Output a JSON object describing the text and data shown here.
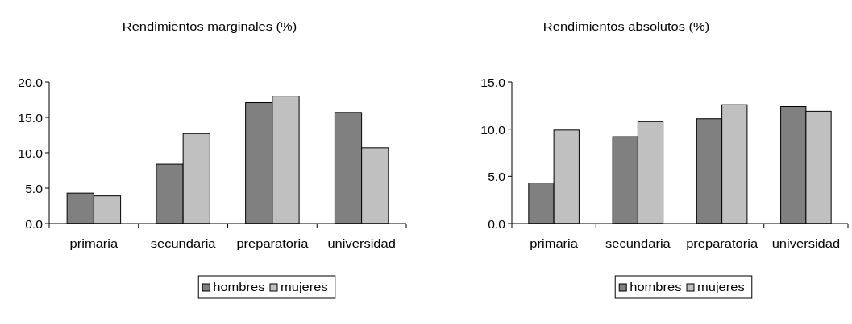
{
  "chart_data": [
    {
      "type": "bar",
      "title": "Rendimientos marginales (%)",
      "categories": [
        "primaria",
        "secundaria",
        "preparatoria",
        "universidad"
      ],
      "series": [
        {
          "name": "hombres",
          "color": "#808080",
          "values": [
            4.3,
            8.4,
            17.1,
            15.7
          ]
        },
        {
          "name": "mujeres",
          "color": "#c0c0c0",
          "values": [
            3.9,
            12.7,
            18.0,
            10.7
          ]
        }
      ],
      "ylim": [
        0,
        20
      ],
      "yticks": [
        {
          "value": 0,
          "label": "0.0"
        },
        {
          "value": 5,
          "label": "5.0"
        },
        {
          "value": 10,
          "label": "10.0"
        },
        {
          "value": 15,
          "label": "15.0"
        },
        {
          "value": 20,
          "label": "20.0"
        }
      ],
      "legend": "bottom"
    },
    {
      "type": "bar",
      "title": "Rendimientos absolutos (%)",
      "categories": [
        "primaria",
        "secundaria",
        "preparatoria",
        "universidad"
      ],
      "series": [
        {
          "name": "hombres",
          "color": "#808080",
          "values": [
            4.3,
            9.2,
            11.1,
            12.4
          ]
        },
        {
          "name": "mujeres",
          "color": "#c0c0c0",
          "values": [
            9.9,
            10.8,
            12.6,
            11.9
          ]
        }
      ],
      "ylim": [
        0,
        15
      ],
      "yticks": [
        {
          "value": 0,
          "label": "0.0"
        },
        {
          "value": 5,
          "label": "5.0"
        },
        {
          "value": 10,
          "label": "10.0"
        },
        {
          "value": 15,
          "label": "15.0"
        }
      ],
      "legend": "bottom"
    }
  ]
}
